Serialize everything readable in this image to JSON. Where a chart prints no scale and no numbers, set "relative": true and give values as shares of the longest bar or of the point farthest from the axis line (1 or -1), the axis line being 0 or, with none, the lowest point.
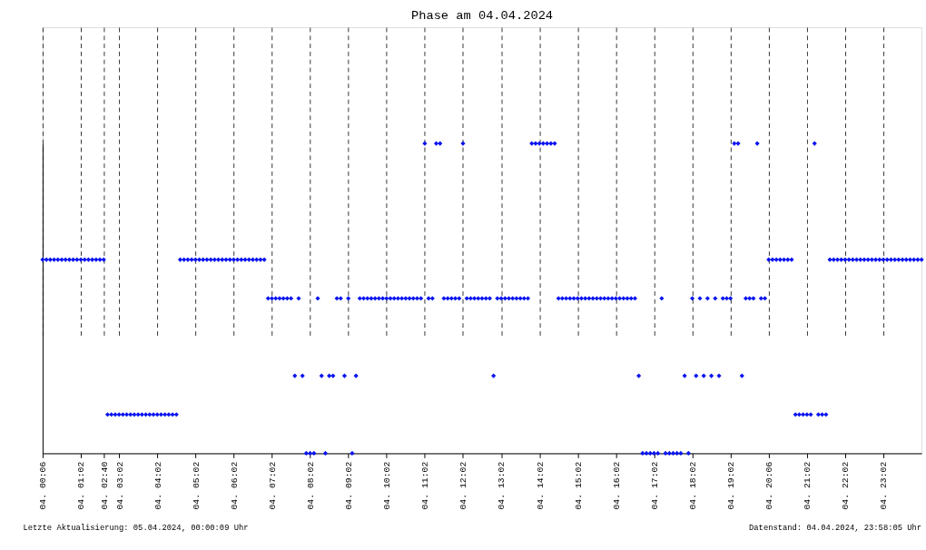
{
  "chart_data": {
    "type": "scatter",
    "title": "Phase am 04.04.2024",
    "annotations": [
      "Letzte Aktualisierung: 05.04.2024, 00:00:09 Uhr",
      "Datenstand: 04.04.2024, 23:58:05 Uhr"
    ],
    "categories": [
      "04. 00:06",
      null,
      null,
      null,
      null,
      null,
      null,
      null,
      null,
      null,
      "04. 01:02",
      null,
      null,
      null,
      null,
      null,
      "04. 02:40",
      null,
      null,
      null,
      "04. 03:02",
      null,
      null,
      null,
      null,
      null,
      null,
      null,
      null,
      null,
      "04. 04:02",
      null,
      null,
      null,
      null,
      null,
      null,
      null,
      null,
      null,
      "04. 05:02",
      null,
      null,
      null,
      null,
      null,
      null,
      null,
      null,
      null,
      "04. 06:02",
      null,
      null,
      null,
      null,
      null,
      null,
      null,
      null,
      null,
      "04. 07:02",
      null,
      null,
      null,
      null,
      null,
      null,
      null,
      null,
      null,
      "04. 08:02",
      null,
      null,
      null,
      null,
      null,
      null,
      null,
      null,
      null,
      "04. 09:02",
      null,
      null,
      null,
      null,
      null,
      null,
      null,
      null,
      null,
      "04. 10:02",
      null,
      null,
      null,
      null,
      null,
      null,
      null,
      null,
      null,
      "04. 11:02",
      null,
      null,
      null,
      null,
      null,
      null,
      null,
      null,
      null,
      "04. 12:02",
      null,
      null,
      null,
      null,
      null,
      null,
      null,
      null,
      null,
      "04. 13:02",
      null,
      null,
      null,
      null,
      null,
      null,
      null,
      null,
      null,
      "04. 14:02",
      null,
      null,
      null,
      null,
      null,
      null,
      null,
      null,
      null,
      "04. 15:02",
      null,
      null,
      null,
      null,
      null,
      null,
      null,
      null,
      null,
      "04. 16:02",
      null,
      null,
      null,
      null,
      null,
      null,
      null,
      null,
      null,
      "04. 17:02",
      null,
      null,
      null,
      null,
      null,
      null,
      null,
      null,
      null,
      "04. 18:02",
      null,
      null,
      null,
      null,
      null,
      null,
      null,
      null,
      null,
      "04. 19:02",
      null,
      null,
      null,
      null,
      null,
      null,
      null,
      null,
      null,
      "04. 20:06",
      null,
      null,
      null,
      null,
      null,
      null,
      null,
      null,
      null,
      "04. 21:02",
      null,
      null,
      null,
      null,
      null,
      null,
      null,
      null,
      null,
      "04. 22:02",
      null,
      null,
      null,
      null,
      null,
      null,
      null,
      null,
      null,
      "04. 23:02",
      null,
      null,
      null,
      null,
      null,
      null,
      null,
      null,
      null,
      null
    ],
    "relative": true,
    "grid": "x",
    "marker": "diamond",
    "series": [
      {
        "color": "#0a14f0",
        "values": [
          0.625,
          0.625,
          0.625,
          0.625,
          0.625,
          0.625,
          0.625,
          0.625,
          0.625,
          0.625,
          0.625,
          0.625,
          0.625,
          0.625,
          0.625,
          0.625,
          0.625,
          0.125,
          0.125,
          0.125,
          0.125,
          0.125,
          0.125,
          0.125,
          0.125,
          0.125,
          0.125,
          0.125,
          0.125,
          0.125,
          0.125,
          0.125,
          0.125,
          0.125,
          0.125,
          0.125,
          0.625,
          0.625,
          0.625,
          0.625,
          0.625,
          0.625,
          0.625,
          0.625,
          0.625,
          0.625,
          0.625,
          0.625,
          0.625,
          0.625,
          0.625,
          0.625,
          0.625,
          0.625,
          0.625,
          0.625,
          0.625,
          0.625,
          0.625,
          0.5,
          0.5,
          0.5,
          0.5,
          0.5,
          0.5,
          0.5,
          0.25,
          0.5,
          0.25,
          0,
          0,
          0,
          0.5,
          0.25,
          0,
          0.25,
          0.25,
          0.5,
          0.5,
          0.25,
          0.5,
          0,
          0.25,
          0.5,
          0.5,
          0.5,
          0.5,
          0.5,
          0.5,
          0.5,
          0.5,
          0.5,
          0.5,
          0.5,
          0.5,
          0.5,
          0.5,
          0.5,
          0.5,
          0.5,
          1,
          0.5,
          0.5,
          1,
          1,
          0.5,
          0.5,
          0.5,
          0.5,
          0.5,
          1,
          0.5,
          0.5,
          0.5,
          0.5,
          0.5,
          0.5,
          0.5,
          0.25,
          0.5,
          0.5,
          0.5,
          0.5,
          0.5,
          0.5,
          0.5,
          0.5,
          0.5,
          1,
          1,
          1,
          1,
          1,
          1,
          1,
          0.5,
          0.5,
          0.5,
          0.5,
          0.5,
          0.5,
          0.5,
          0.5,
          0.5,
          0.5,
          0.5,
          0.5,
          0.5,
          0.5,
          0.5,
          0.5,
          0.5,
          0.5,
          0.5,
          0.5,
          0.5,
          0.25,
          0,
          0,
          0,
          0,
          0,
          0.5,
          0,
          0,
          0,
          0,
          0,
          0.25,
          0,
          0.5,
          0.25,
          0.5,
          0.25,
          0.5,
          0.25,
          0.5,
          0.25,
          0.5,
          0.5,
          0.5,
          1,
          1,
          0.25,
          0.5,
          0.5,
          0.5,
          1,
          0.5,
          0.5,
          0.625,
          0.625,
          0.625,
          0.625,
          0.625,
          0.625,
          0.625,
          0.125,
          0.125,
          0.125,
          0.125,
          0.125,
          1,
          0.125,
          0.125,
          0.125,
          0.625,
          0.625,
          0.625,
          0.625,
          0.625,
          0.625,
          0.625,
          0.625,
          0.625,
          0.625,
          0.625,
          0.625,
          0.625,
          0.625,
          0.625,
          0.625,
          0.625,
          0.625,
          0.625,
          0.625,
          0.625,
          0.625,
          0.625,
          0.625,
          0.625
        ]
      }
    ]
  }
}
